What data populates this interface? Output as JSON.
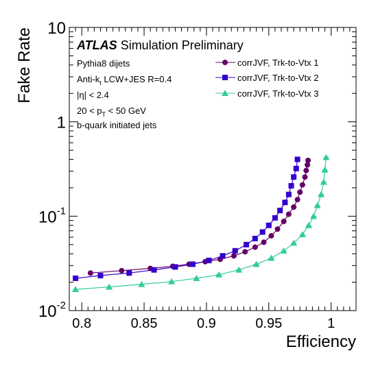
{
  "chart_data": {
    "type": "scatter",
    "title": "",
    "xlabel": "Efficiency",
    "ylabel": "Fake Rate",
    "xlim": [
      0.79,
      1.02
    ],
    "ylim": [
      0.01,
      10
    ],
    "y_scale": "log",
    "x_ticks": [
      "0.8",
      "0.85",
      "0.9",
      "0.95",
      "1"
    ],
    "y_ticks": [
      {
        "value": 10,
        "base": "10",
        "exp": ""
      },
      {
        "value": 1,
        "base": "1",
        "exp": ""
      },
      {
        "value": 0.1,
        "base": "10",
        "exp": "-1"
      },
      {
        "value": 0.01,
        "base": "10",
        "exp": "-2"
      }
    ],
    "grid": false,
    "legend_position": "top-right",
    "annotations": {
      "atlas": "ATLAS",
      "atlas_suffix": "Simulation Preliminary",
      "line1": "Pythia8 dijets",
      "line2_pre": "Anti-k",
      "line2_sub": "t",
      "line2_post": " LCW+JES R=0.4",
      "line3": "|η| < 2.4",
      "line4_pre": "20 < p",
      "line4_sub": "T",
      "line4_post": " < 50 GeV",
      "line5": "b-quark initiated jets"
    },
    "series": [
      {
        "name": "corrJVF, Trk-to-Vtx 1",
        "color": "#660066",
        "marker": "circle",
        "x": [
          0.807,
          0.832,
          0.855,
          0.873,
          0.886,
          0.899,
          0.911,
          0.922,
          0.931,
          0.939,
          0.946,
          0.952,
          0.957,
          0.962,
          0.966,
          0.97,
          0.973,
          0.975,
          0.977,
          0.979,
          0.98,
          0.981,
          0.9815
        ],
        "y": [
          0.025,
          0.0265,
          0.028,
          0.0295,
          0.031,
          0.033,
          0.035,
          0.038,
          0.042,
          0.047,
          0.053,
          0.062,
          0.073,
          0.088,
          0.105,
          0.125,
          0.15,
          0.18,
          0.215,
          0.26,
          0.305,
          0.35,
          0.39
        ]
      },
      {
        "name": "corrJVF, Trk-to-Vtx 2",
        "color": "#3300cc",
        "marker": "square",
        "x": [
          0.795,
          0.815,
          0.838,
          0.858,
          0.875,
          0.889,
          0.902,
          0.913,
          0.923,
          0.932,
          0.939,
          0.945,
          0.95,
          0.955,
          0.959,
          0.963,
          0.966,
          0.968,
          0.97,
          0.972,
          0.973
        ],
        "y": [
          0.022,
          0.0235,
          0.025,
          0.027,
          0.029,
          0.031,
          0.034,
          0.038,
          0.043,
          0.05,
          0.058,
          0.068,
          0.08,
          0.096,
          0.115,
          0.14,
          0.17,
          0.21,
          0.26,
          0.32,
          0.4
        ]
      },
      {
        "name": "corrJVF, Trk-to-Vtx 3",
        "color": "#33cc99",
        "marker": "triangle",
        "x": [
          0.795,
          0.822,
          0.848,
          0.872,
          0.892,
          0.91,
          0.926,
          0.94,
          0.952,
          0.962,
          0.97,
          0.977,
          0.982,
          0.986,
          0.989,
          0.992,
          0.994,
          0.995,
          0.996
        ],
        "y": [
          0.0168,
          0.0178,
          0.019,
          0.0203,
          0.022,
          0.024,
          0.027,
          0.031,
          0.036,
          0.043,
          0.052,
          0.064,
          0.08,
          0.1,
          0.13,
          0.17,
          0.23,
          0.31,
          0.42
        ]
      }
    ]
  }
}
